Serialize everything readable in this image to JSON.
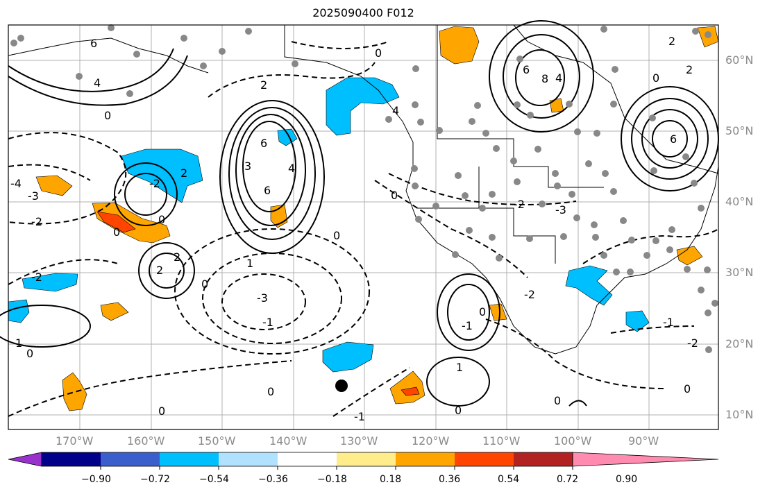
{
  "title": "2025090400 F012",
  "lon_labels": [
    "170°W",
    "160°W",
    "150°W",
    "140°W",
    "130°W",
    "120°W",
    "110°W",
    "100°W",
    "90°W"
  ],
  "lat_labels": [
    "60°N",
    "50°N",
    "40°N",
    "30°N",
    "20°N",
    "10°N"
  ],
  "colorbar": {
    "tick_labels": [
      "−0.90",
      "−0.72",
      "−0.54",
      "−0.36",
      "−0.18",
      "0.18",
      "0.36",
      "0.54",
      "0.72",
      "0.90"
    ],
    "colors": [
      "#9932cc",
      "#00008b",
      "#3a5fcd",
      "#00bfff",
      "#b0e2ff",
      "#ffffff",
      "#ffec8b",
      "#ffa500",
      "#ff4500",
      "#b22222",
      "#ff8cb0"
    ]
  },
  "marker": {
    "lon": -133,
    "lat": 14
  },
  "colors": {
    "positive": "#ffa500",
    "strong_positive": "#ff4500",
    "negative": "#00bfff",
    "grid": "#b0b0b0",
    "stations": "#888888"
  }
}
